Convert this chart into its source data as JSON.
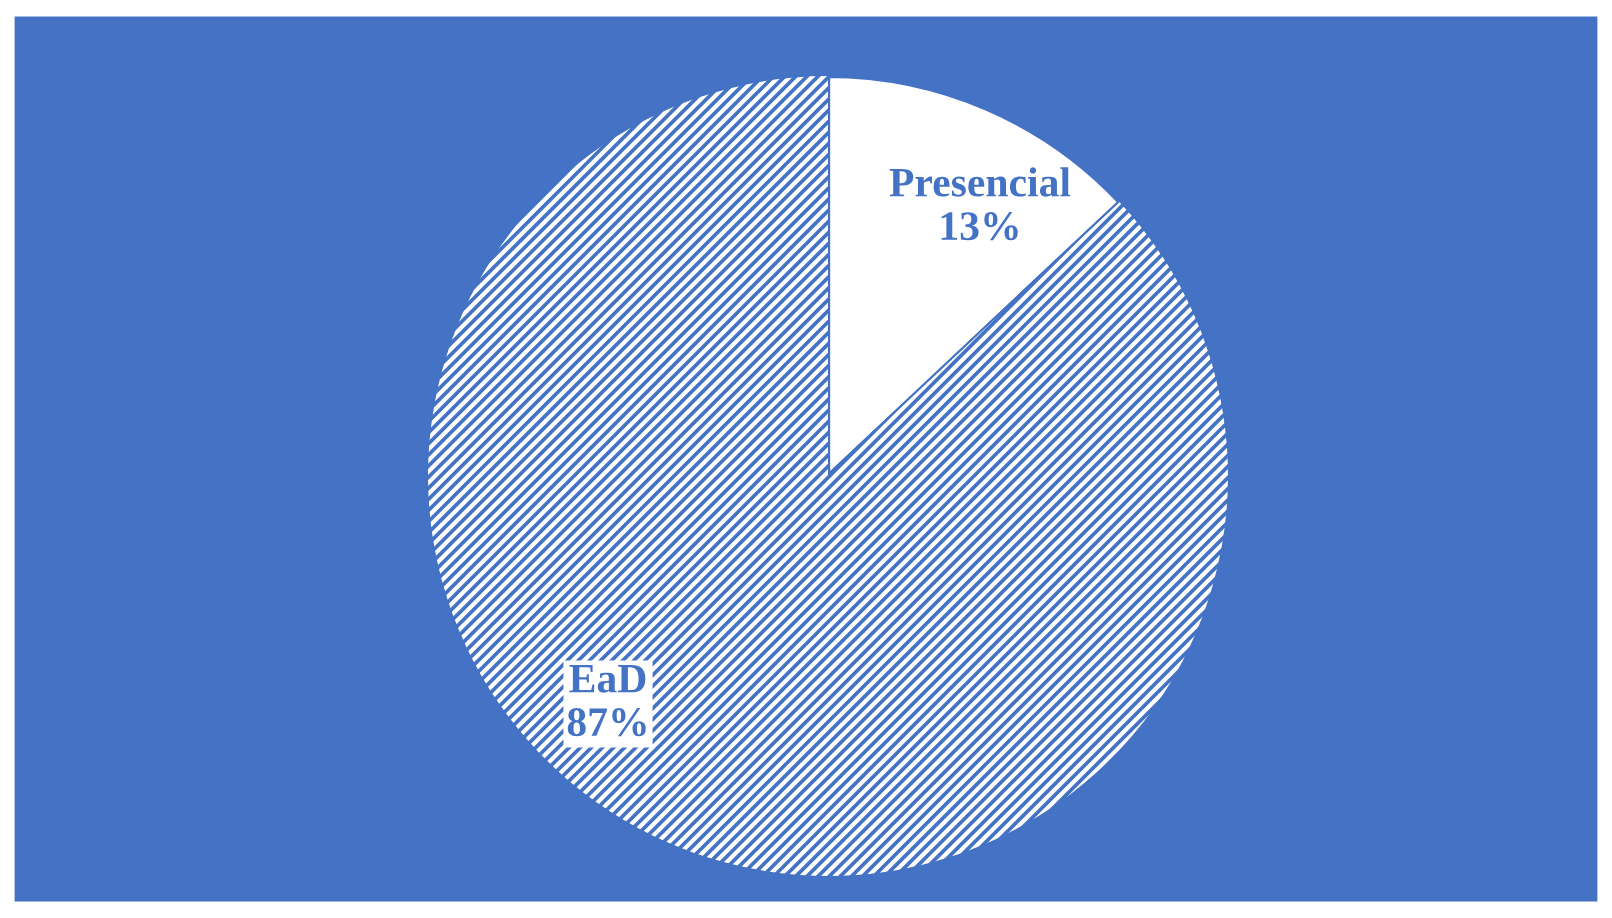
{
  "chart_data": {
    "type": "pie",
    "categories": [
      "Presencial",
      "EaD"
    ],
    "values": [
      13,
      87
    ],
    "colors": [
      "#ffffff",
      "#4472c4"
    ],
    "value_labels": [
      "13%",
      "87%"
    ],
    "legend": false
  }
}
